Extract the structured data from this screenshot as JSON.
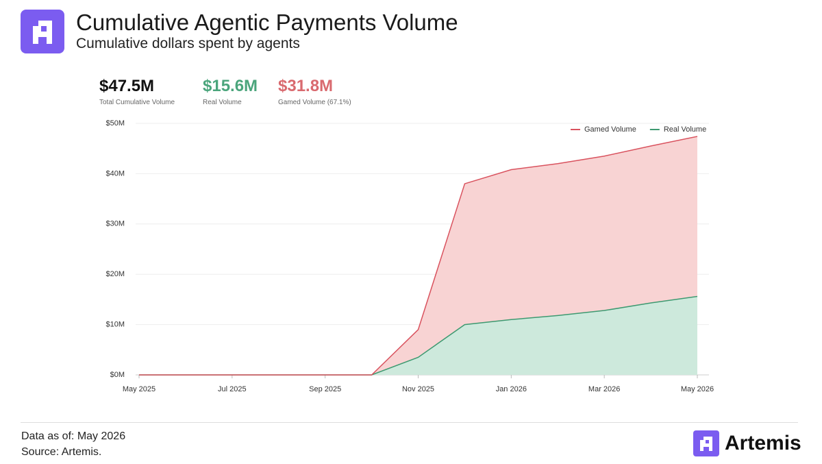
{
  "header": {
    "title": "Cumulative Agentic Payments Volume",
    "subtitle": "Cumulative dollars spent by agents"
  },
  "kpis": [
    {
      "value": "$47.5M",
      "label": "Total Cumulative Volume",
      "color": "#111111"
    },
    {
      "value": "$15.6M",
      "label": "Real Volume",
      "color": "#4ba57c"
    },
    {
      "value": "$31.8M",
      "label": "Gamed Volume (67.1%)",
      "color": "#d96a6f"
    }
  ],
  "chart_data": {
    "type": "stacked-area",
    "x": [
      "May 2025",
      null,
      "Jul 2025",
      null,
      "Sep 2025",
      null,
      "Nov 2025",
      null,
      "Jan 2026",
      null,
      "Mar 2026",
      null,
      "May 2026"
    ],
    "series": [
      {
        "name": "Gamed Volume",
        "color": "#d9525e",
        "fill": "#f8d3d3",
        "values": [
          0,
          0,
          0,
          0,
          0,
          0,
          5.5,
          28,
          29.8,
          30.2,
          30.7,
          31.2,
          31.8
        ]
      },
      {
        "name": "Real Volume",
        "color": "#3d9970",
        "fill": "#cde9dc",
        "values": [
          0,
          0,
          0,
          0,
          0,
          0,
          3.5,
          10,
          11,
          11.8,
          12.8,
          14.3,
          15.6
        ]
      }
    ],
    "ylim": [
      0,
      50
    ],
    "yticks": [
      {
        "value": 0,
        "label": "$0M"
      },
      {
        "value": 10,
        "label": "$10M"
      },
      {
        "value": 20,
        "label": "$20M"
      },
      {
        "value": 30,
        "label": "$30M"
      },
      {
        "value": 40,
        "label": "$40M"
      },
      {
        "value": 50,
        "label": "$50M"
      }
    ],
    "grid": true,
    "legend": "top-right"
  },
  "footer": {
    "date": "Data as of:  May 2026",
    "source": "Source: Artemis.",
    "brand": "Artemis"
  }
}
